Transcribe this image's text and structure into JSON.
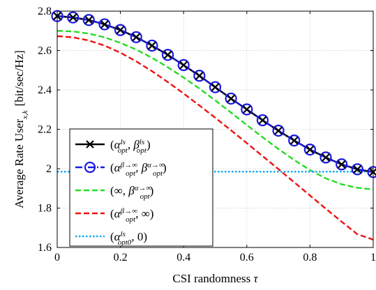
{
  "chart_data": {
    "type": "line",
    "xlabel": "CSI randomness τ",
    "ylabel": "Average Rate User",
    "ylabel_sub": "x,k",
    "ylabel_unit": "[bit/sec/Hz]",
    "xlim": [
      0,
      1
    ],
    "ylim": [
      1.6,
      2.8
    ],
    "xticks": [
      "0",
      "0.2",
      "0.4",
      "0.6",
      "0.8",
      "1"
    ],
    "yticks": [
      "1.6",
      "1.8",
      "2",
      "2.2",
      "2.4",
      "2.6",
      "2.8"
    ],
    "grid": true,
    "legend_position": "bottom-left",
    "x": [
      0,
      0.05,
      0.1,
      0.15,
      0.2,
      0.25,
      0.3,
      0.35,
      0.4,
      0.45,
      0.5,
      0.55,
      0.6,
      0.65,
      0.7,
      0.75,
      0.8,
      0.85,
      0.9,
      0.95,
      1.0
    ],
    "series": [
      {
        "legend": {
          "main": "α",
          "sup1": "ls",
          "sub1": "opt",
          "main2": "β",
          "sup2": "ls",
          "sub2": "opt"
        },
        "color": "#000000",
        "style": "solid",
        "marker": "x",
        "values": [
          2.775,
          2.768,
          2.755,
          2.733,
          2.704,
          2.668,
          2.625,
          2.578,
          2.526,
          2.472,
          2.414,
          2.356,
          2.301,
          2.246,
          2.193,
          2.143,
          2.097,
          2.057,
          2.022,
          1.997,
          1.983
        ]
      },
      {
        "legend": {
          "main": "α",
          "sup1": "β→∞",
          "sub1": "opt",
          "main2": "β",
          "sup2": "α→∞",
          "sub2": "opt"
        },
        "color": "#1a1adf",
        "style": "dash-dot",
        "marker": "circle",
        "values": [
          2.775,
          2.768,
          2.755,
          2.733,
          2.704,
          2.668,
          2.625,
          2.578,
          2.526,
          2.472,
          2.414,
          2.356,
          2.301,
          2.246,
          2.193,
          2.143,
          2.097,
          2.057,
          2.022,
          1.997,
          1.983
        ]
      },
      {
        "legend": {
          "prefix": "(∞, ",
          "main2": "β",
          "sup2": "α→∞",
          "sub2": "opt"
        },
        "color": "#22dd22",
        "style": "dashed",
        "marker": "none",
        "values": [
          2.7,
          2.697,
          2.686,
          2.667,
          2.639,
          2.605,
          2.563,
          2.515,
          2.463,
          2.407,
          2.347,
          2.285,
          2.222,
          2.16,
          2.1,
          2.044,
          1.993,
          1.951,
          1.921,
          1.903,
          1.895
        ]
      },
      {
        "legend": {
          "main": "α",
          "sup1": "β→∞",
          "sub1": "opt",
          "suffix": ", ∞)"
        },
        "color": "#ee1111",
        "style": "dashed",
        "marker": "none",
        "values": [
          2.673,
          2.667,
          2.651,
          2.625,
          2.589,
          2.545,
          2.495,
          2.44,
          2.382,
          2.321,
          2.259,
          2.195,
          2.13,
          2.064,
          1.998,
          1.931,
          1.864,
          1.797,
          1.731,
          1.667,
          1.64
        ]
      },
      {
        "legend": {
          "main": "α",
          "sup1": "ls",
          "sub1": "opt0",
          "suffix": ", 0)"
        },
        "color": "#11aaee",
        "style": "dotted",
        "marker": "none",
        "values": [
          1.985,
          1.985,
          1.985,
          1.985,
          1.985,
          1.985,
          1.985,
          1.985,
          1.985,
          1.985,
          1.985,
          1.985,
          1.985,
          1.985,
          1.985,
          1.985,
          1.985,
          1.985,
          1.985,
          1.985,
          1.985
        ]
      }
    ]
  }
}
